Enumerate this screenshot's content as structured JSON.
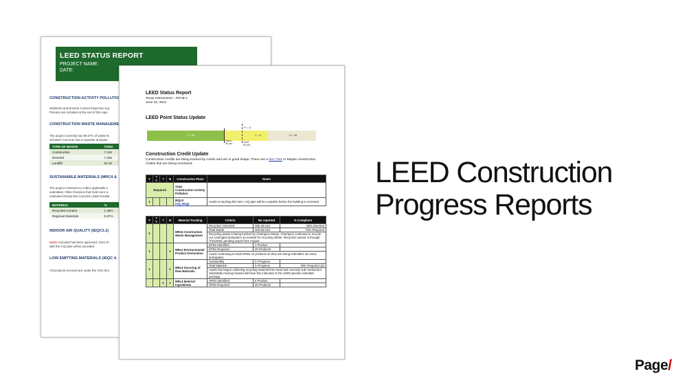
{
  "slide": {
    "title_line1": "LEED Construction",
    "title_line2": "Progress Reports",
    "logo_text": "Page",
    "logo_slash": "/",
    "accent_color": "#c00000"
  },
  "back_doc": {
    "banner_title": "LEED STATUS REPORT",
    "project_label": "PROJECT NAME:",
    "date_label": "DATE:",
    "section1": "CONSTRUCTION ACTIVITY POLLUTION",
    "section1_text1": "Sediment and Erosion Control Inspection log",
    "section1_text2": "Pictures are included at the end of this repo",
    "section2": "CONSTRUCTION WASTE MANAGEME",
    "section2_text1": "The project currently has 99.27% of waste th",
    "section2_text2": "Schuster Concrete has a separate dumpste",
    "waste_table": {
      "headers": [
        "TYPE OF WASTE",
        "TONS"
      ],
      "rows": [
        [
          "Construction",
          "7,318"
        ],
        [
          "Diverted",
          "7,265"
        ],
        [
          "Landfill",
          "53.15"
        ]
      ]
    },
    "section3": "SUSTAINABLE MATERIALS (MRC4 &",
    "section3_text1": "The project continues to collect applicable s",
    "section3_text2": "submittals. Other Divisions that hold more w",
    "section3_text3": "estimated Ready Mix Concrete LEED breakd",
    "materials_table": {
      "headers": [
        "MATERIAL",
        "%"
      ],
      "rows": [
        [
          "Recycled Content",
          "1.48%"
        ],
        [
          "Regional Materials",
          "8.37%"
        ]
      ]
    },
    "section4": "INDOOR AIR QUALITY (IEQC3.1)",
    "section4_name": "Name",
    "section4_text1": " IAQ plan has been approved. Once th",
    "section4_text2": "with the IAQ plan will be provided.",
    "section5": "LOW EMITTING MATERIALS (IEQC 4.",
    "section5_text": "All products received are under the VOC limi"
  },
  "front_doc": {
    "title": "LEED Status Report",
    "client": "Texas Instruments – RFAB 2",
    "date": "June 22, 2021",
    "point_heading": "LEED Point Status Update",
    "bar": {
      "y_label": "Y = 56",
      "yq_label": "?Y = 6",
      "ytop_label": "Y = 8",
      "n_label": "N = 38",
      "silver_label": "Silver",
      "silver_pts": "50 pts",
      "gold_label": "Gold",
      "gold_pts": "60 pts",
      "y_color": "#8cc04b",
      "yq_color": "#f2ef6a",
      "n_color": "#ece7d3",
      "y_value": 56,
      "yq_value": 6,
      "n_value": 38
    },
    "credit_heading": "Construction Credit Update",
    "credit_text_pre": "Construction credits are being tracked by Austin and are in good shape. There are a ",
    "credit_link": "few ?Yes",
    "credit_text_post": " or Maybe construction credits that are being monitored.",
    "table1": {
      "headers": [
        "Y",
        "?Y",
        "?",
        "N",
        "Construction Plans",
        "Notes"
      ],
      "row1_required": "Required",
      "row1_code": "SSp1",
      "row1_name": "Construction Activity Pollution",
      "row2_y": "1",
      "row2_code": "IEQc3",
      "row2_link": "IAQ, Mngt",
      "row2_notes": "Austin is tracking this item. IAQ plan will be complete before the building is enclosed."
    },
    "table2": {
      "headers": [
        "Y",
        "?Y",
        "?",
        "N",
        "Material Tracking",
        "Criteria",
        "No reported",
        "% Compliant"
      ],
      "mrc5": {
        "y": "2",
        "name": "MRc5 Construction Waste Management",
        "r1": [
          "Recycled / Diverted",
          "385.48 tons",
          "96% Diverted"
        ],
        "r2": [
          "Total Waste",
          "402.58 tons",
          "75% Required"
        ],
        "note": "Recycling waste is being tracked by Champion Waste. Champion continues to recycle out comingled dumpsters as needed for recycling offsite. Recycled content is through 7/31/2020, pending report from August."
      },
      "mrc2": {
        "y": "1",
        "n": "1",
        "name": "MRc2 Environmental Product Declaration",
        "r1": [
          "EPDs Identified",
          "1 Product",
          ""
        ],
        "r2": [
          "EPDs Required",
          "20 Products",
          ""
        ],
        "note": "Austin continuing to track EPDs on products as they are being submitted. No issue anticipated."
      },
      "mrc3": {
        "y": "1",
        "n": "1",
        "name": "MRc3 Sourcing of Raw Materials",
        "r1": [
          "Sustainably",
          "In Progress",
          ""
        ],
        "r2": [
          "Total Material",
          "In Progress",
          "20% Required 1pt"
        ],
        "note": "Austin has begun collecting recycling material from steel and concrete sub-contractors. Submittals moving forward will have this indicated in the LEED specific submittal package."
      },
      "mrc4": {
        "q": "1",
        "n": "1",
        "name": "MRc4 Material Ingredients",
        "r1": [
          "HPDs Identified",
          "6 Product",
          ""
        ],
        "r2": [
          "HPDs Required",
          "20 Products",
          ""
        ]
      }
    }
  }
}
